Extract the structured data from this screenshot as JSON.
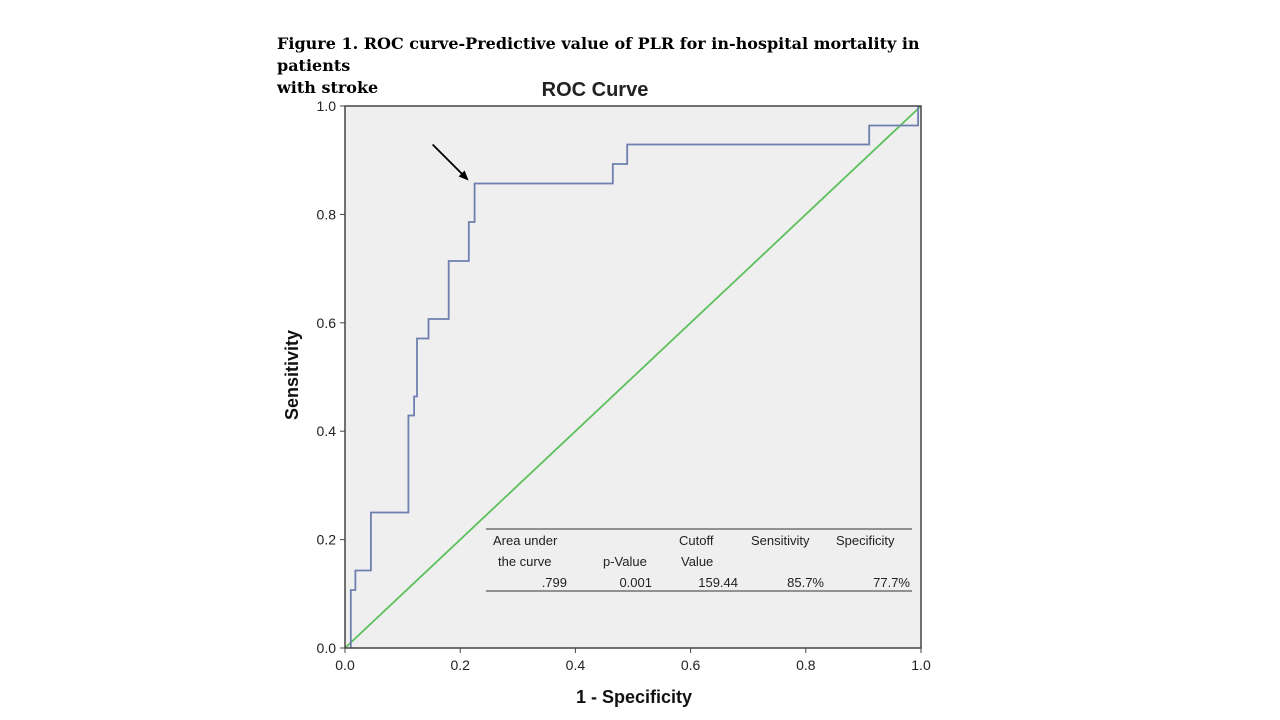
{
  "figure": {
    "caption_line1": "Figure 1. ROC curve-Predictive value of PLR for in-hospital mortality in patients",
    "caption_line2": "with stroke"
  },
  "colors": {
    "plot_bg": "#efefef",
    "frame": "#444444",
    "roc_line": "#6f7fb0",
    "reference_line": "#5cc15c",
    "arrow": "#000000"
  },
  "chart_data": {
    "type": "line",
    "title": "ROC Curve",
    "xlabel": "1 - Specificity",
    "ylabel": "Sensitivity",
    "xlim": [
      0,
      1
    ],
    "ylim": [
      0,
      1
    ],
    "x_ticks": [
      "0.0",
      "0.2",
      "0.4",
      "0.6",
      "0.8",
      "1.0"
    ],
    "y_ticks": [
      "0.0",
      "0.2",
      "0.4",
      "0.6",
      "0.8",
      "1.0"
    ],
    "series": [
      {
        "name": "ROC",
        "x": [
          0.01,
          0.01,
          0.018,
          0.018,
          0.045,
          0.045,
          0.11,
          0.11,
          0.12,
          0.12,
          0.125,
          0.125,
          0.145,
          0.145,
          0.18,
          0.18,
          0.215,
          0.215,
          0.225,
          0.225,
          0.465,
          0.465,
          0.49,
          0.49,
          0.91,
          0.91,
          0.995,
          0.995
        ],
        "y": [
          0.0,
          0.107,
          0.107,
          0.143,
          0.143,
          0.25,
          0.25,
          0.429,
          0.429,
          0.464,
          0.464,
          0.571,
          0.571,
          0.607,
          0.607,
          0.714,
          0.714,
          0.786,
          0.786,
          0.857,
          0.857,
          0.893,
          0.893,
          0.929,
          0.929,
          0.964,
          0.964,
          1.0
        ]
      },
      {
        "name": "Reference Line",
        "x": [
          0,
          1
        ],
        "y": [
          0,
          1
        ]
      }
    ],
    "annotation": {
      "type": "arrow",
      "points_to": [
        0.225,
        0.857
      ]
    },
    "table": {
      "headers": [
        [
          "Area under",
          "the curve"
        ],
        [
          "",
          "p-Value"
        ],
        [
          "Cutoff",
          "Value"
        ],
        [
          "Sensitivity",
          ""
        ],
        [
          "Specificity",
          ""
        ]
      ],
      "values": [
        ".799",
        "0.001",
        "159.44",
        "85.7%",
        "77.7%"
      ]
    }
  }
}
